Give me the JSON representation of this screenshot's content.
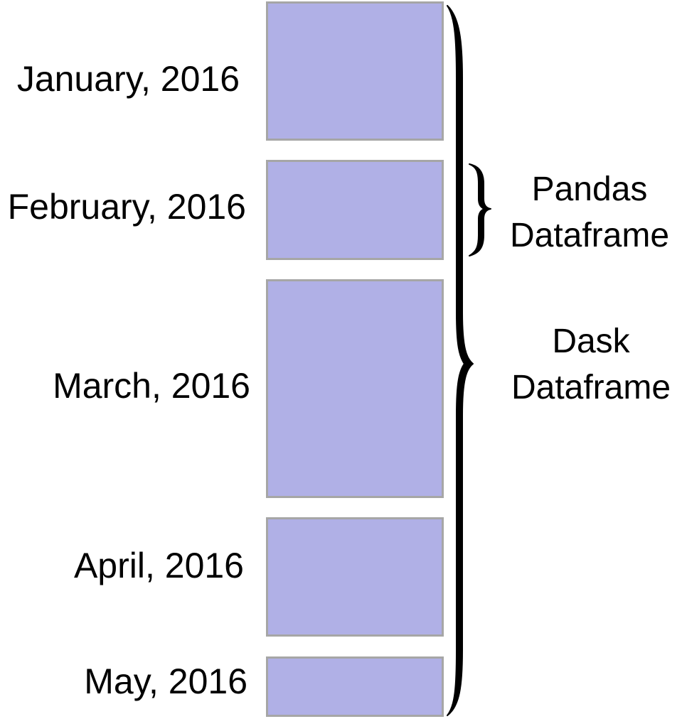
{
  "partitions": [
    {
      "label": "January, 2016"
    },
    {
      "label": "February, 2016"
    },
    {
      "label": "March, 2016"
    },
    {
      "label": "April, 2016"
    },
    {
      "label": "May, 2016"
    }
  ],
  "pandas_caption": {
    "line1": "Pandas",
    "line2": "Dataframe"
  },
  "dask_caption": {
    "line1": "Dask",
    "line2": "Dataframe"
  },
  "colors": {
    "partition_fill": "#b0b0e6",
    "partition_border": "#a6a6a6",
    "brace": "#000000"
  }
}
